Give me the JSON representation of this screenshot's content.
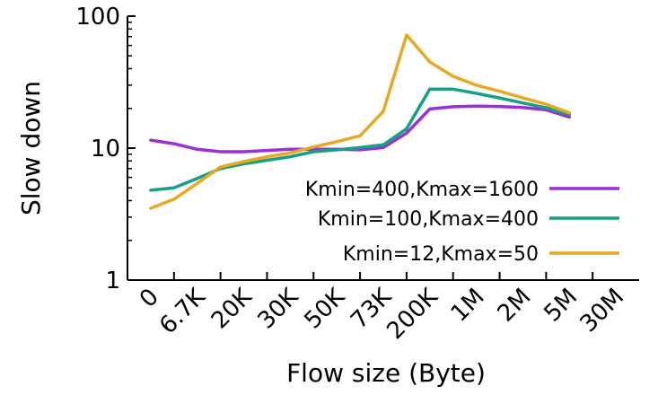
{
  "chart_data": {
    "type": "line",
    "xlabel": "Flow size (Byte)",
    "ylabel": "Slow down",
    "y_scale": "log",
    "ylim": [
      1,
      100
    ],
    "yticks": [
      "1",
      "10",
      "100"
    ],
    "categories": [
      "0",
      "6.7K",
      "20K",
      "30K",
      "50K",
      "73K",
      "200K",
      "1M",
      "2M",
      "5M",
      "30M"
    ],
    "x_label_rotation_deg": -45,
    "grid": false,
    "legend_position": "right",
    "series": [
      {
        "name": "Kmin=400,Kmax=1600",
        "color": "#9b30d9",
        "points": [
          [
            0.5,
            11.5
          ],
          [
            1,
            10.8
          ],
          [
            1.5,
            9.8
          ],
          [
            2,
            9.4
          ],
          [
            2.5,
            9.4
          ],
          [
            3,
            9.6
          ],
          [
            3.5,
            9.8
          ],
          [
            4,
            9.8
          ],
          [
            4.5,
            9.8
          ],
          [
            5,
            9.7
          ],
          [
            5.5,
            10.1
          ],
          [
            6,
            13
          ],
          [
            6.5,
            19.8
          ],
          [
            7,
            20.6
          ],
          [
            7.5,
            20.8
          ],
          [
            8,
            20.7
          ],
          [
            8.5,
            20.3
          ],
          [
            9,
            19.5
          ],
          [
            9.5,
            17.2
          ]
        ]
      },
      {
        "name": "Kmin=100,Kmax=400",
        "color": "#16a085",
        "points": [
          [
            0.5,
            4.8
          ],
          [
            1,
            5.0
          ],
          [
            1.5,
            5.9
          ],
          [
            2,
            7.0
          ],
          [
            2.5,
            7.6
          ],
          [
            3,
            8.1
          ],
          [
            3.5,
            8.6
          ],
          [
            4,
            9.4
          ],
          [
            4.5,
            9.7
          ],
          [
            5,
            10.1
          ],
          [
            5.5,
            10.6
          ],
          [
            6,
            14
          ],
          [
            6.5,
            28
          ],
          [
            7,
            28
          ],
          [
            7.5,
            26
          ],
          [
            8,
            24
          ],
          [
            8.5,
            22
          ],
          [
            9,
            20.2
          ],
          [
            9.5,
            18.0
          ]
        ]
      },
      {
        "name": "Kmin=12,Kmax=50",
        "color": "#e8a822",
        "points": [
          [
            0.5,
            3.5
          ],
          [
            1,
            4.1
          ],
          [
            1.5,
            5.4
          ],
          [
            2,
            7.2
          ],
          [
            2.5,
            7.9
          ],
          [
            3,
            8.6
          ],
          [
            3.5,
            9.2
          ],
          [
            4,
            10.2
          ],
          [
            4.5,
            11.2
          ],
          [
            5,
            12.4
          ],
          [
            5.5,
            19
          ],
          [
            6,
            72
          ],
          [
            6.5,
            45
          ],
          [
            7,
            35
          ],
          [
            7.5,
            30
          ],
          [
            8,
            27
          ],
          [
            8.5,
            24
          ],
          [
            9,
            21.5
          ],
          [
            9.5,
            18.5
          ]
        ]
      }
    ]
  }
}
